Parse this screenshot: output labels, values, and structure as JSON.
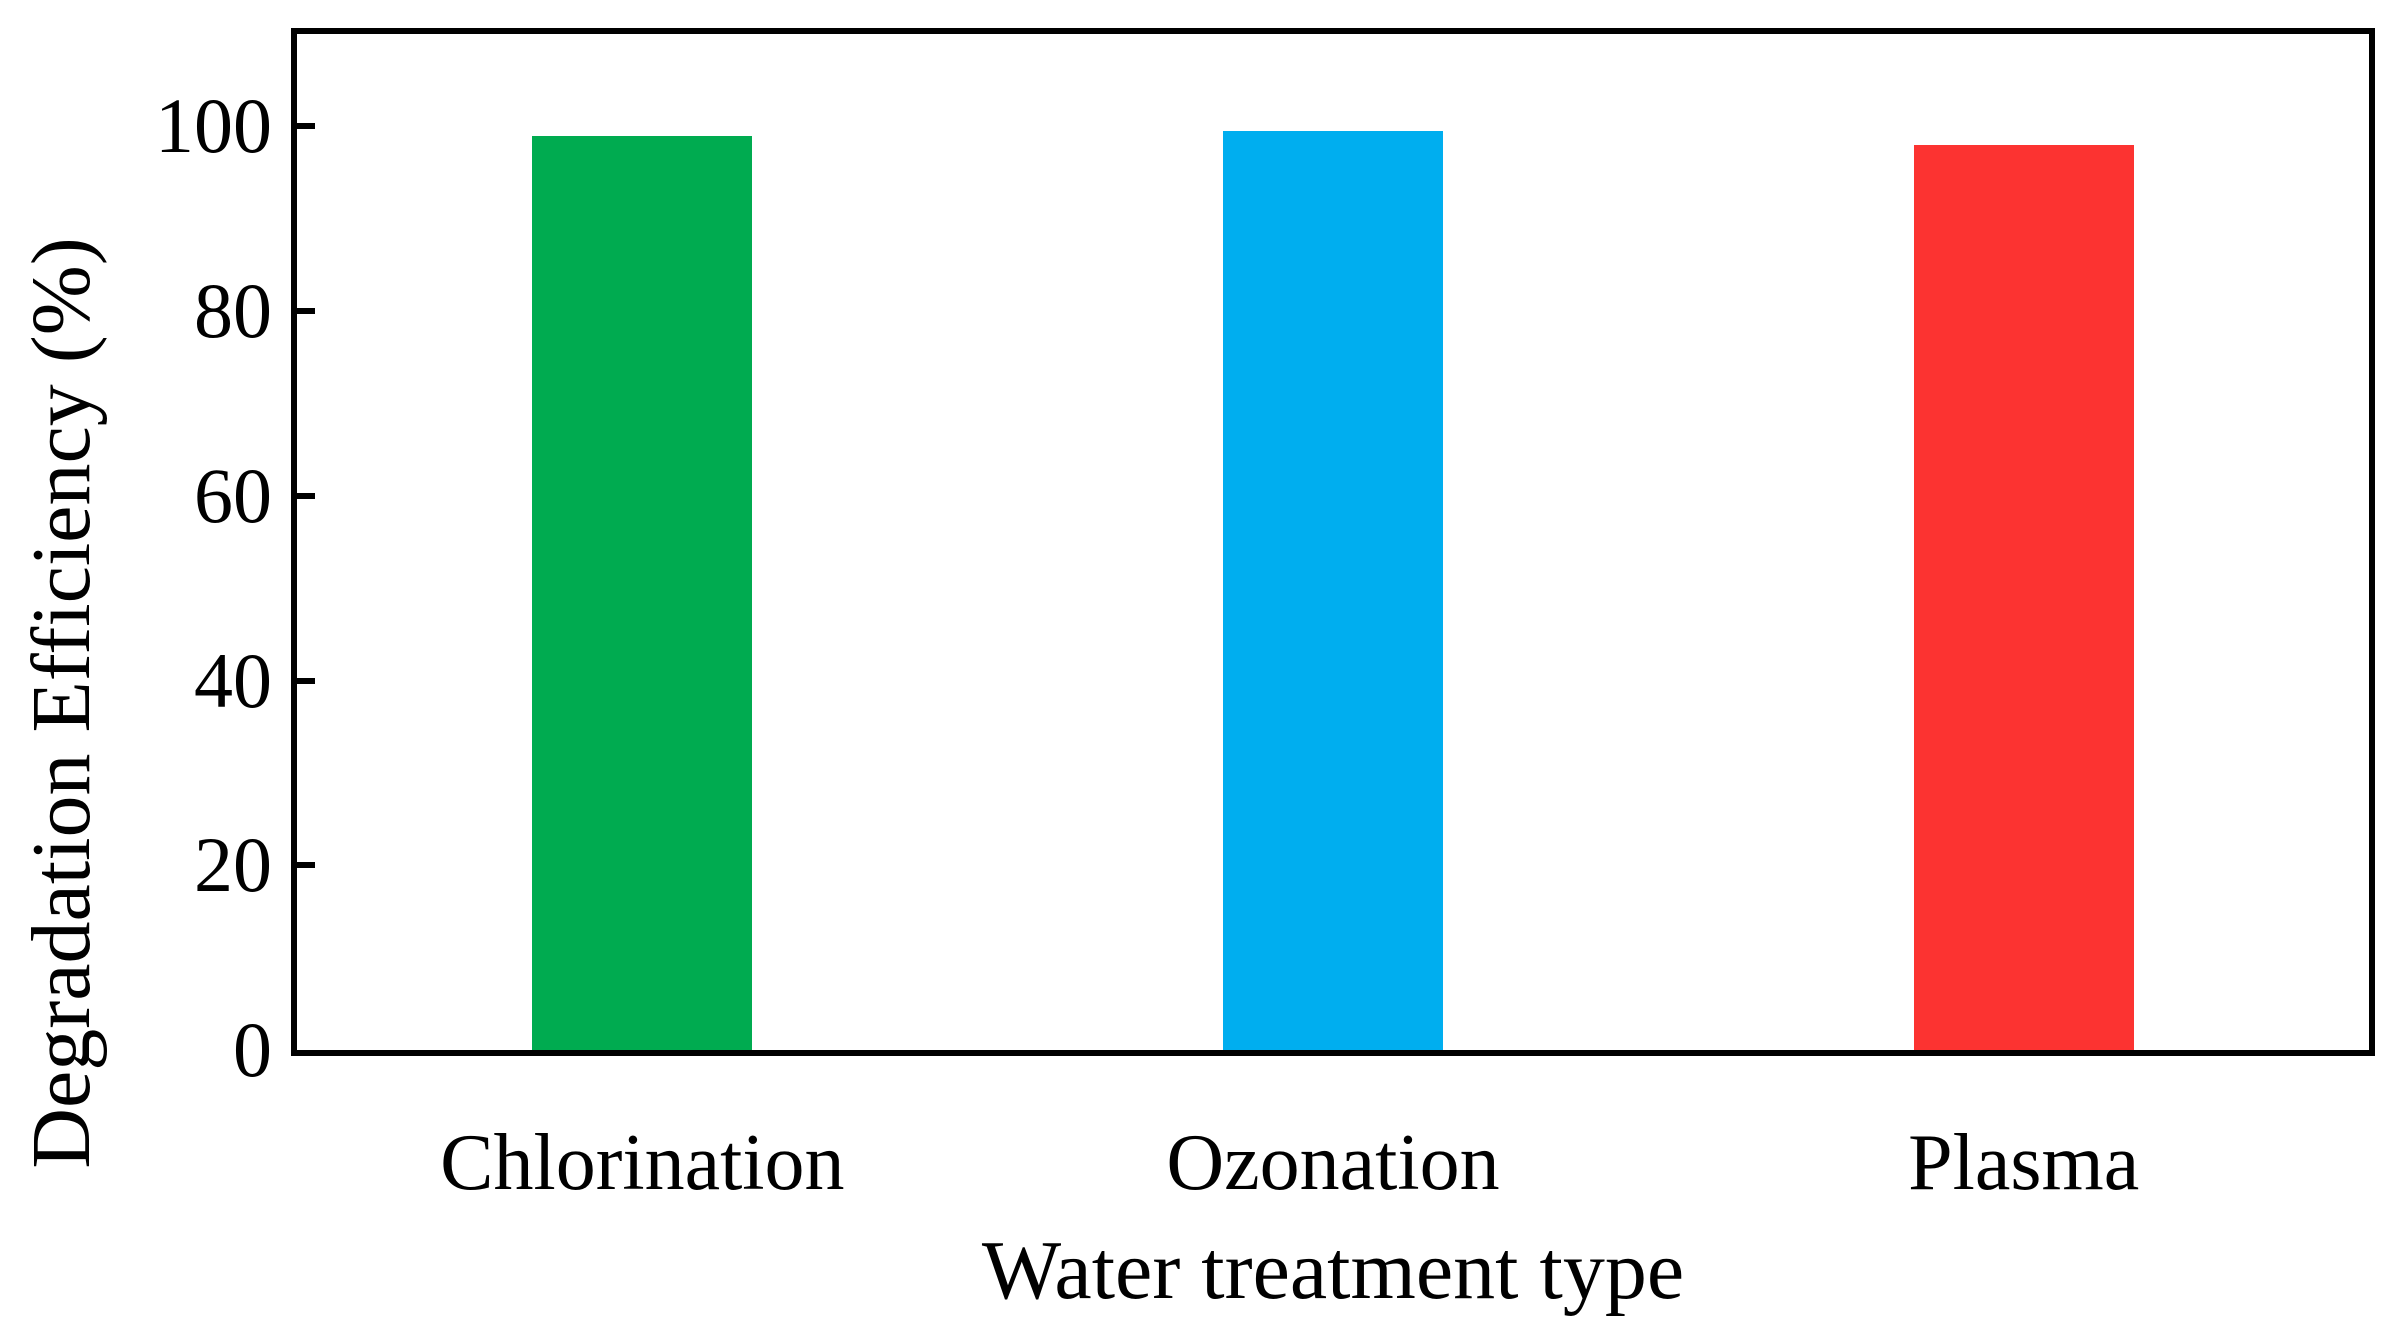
{
  "chart_data": {
    "type": "bar",
    "title": "",
    "categories": [
      "Chlorination",
      "Ozonation",
      "Plasma"
    ],
    "values": [
      99,
      99.5,
      98
    ],
    "bar_colors": [
      "#00AB50",
      "#00AEEF",
      "#FC3331"
    ],
    "xlabel": "Water treatment type",
    "ylabel": "Degradation Efficiency (%)",
    "ylim": [
      0,
      110
    ],
    "yticks": [
      0,
      20,
      40,
      60,
      80,
      100
    ],
    "grid": false,
    "legend_position": "none",
    "frame_color": "#000000",
    "background_color": "#FFFFFF",
    "text_color": "#000000"
  }
}
